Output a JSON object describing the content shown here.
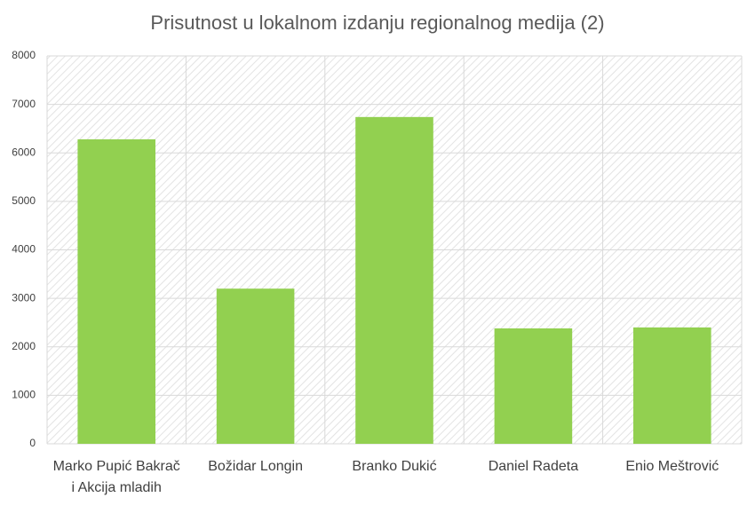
{
  "chart_data": {
    "type": "bar",
    "title": "Prisutnost u lokalnom izdanju regionalnog medija (2)",
    "categories": [
      "Marko Pupić Bakrač i Akcija mladih",
      "Božidar Longin",
      "Branko Dukić",
      "Daniel Radeta",
      "Enio Meštrović"
    ],
    "values": [
      6280,
      3200,
      6740,
      2380,
      2400
    ],
    "color": "#92d050",
    "ylim": [
      0,
      8000
    ],
    "yticks": [
      0,
      1000,
      2000,
      3000,
      4000,
      5000,
      6000,
      7000,
      8000
    ],
    "grid": true
  }
}
